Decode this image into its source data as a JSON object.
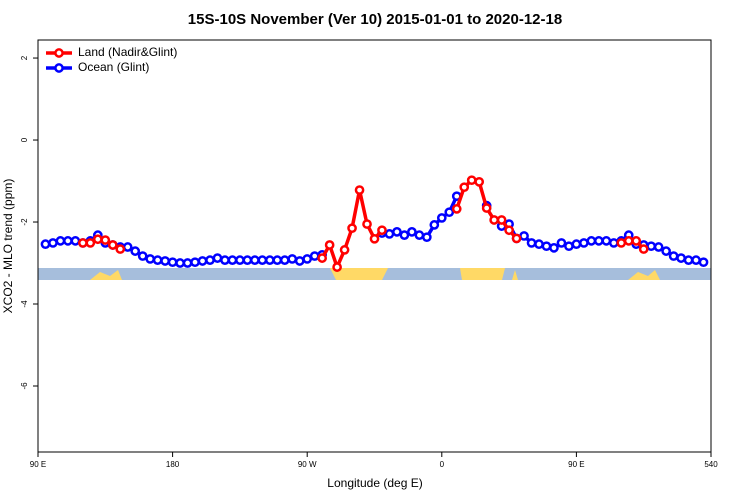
{
  "chart_data": {
    "type": "line",
    "title": "15S-10S November (Ver 10)   2015-01-01 to 2020-12-18",
    "x_label": "Longitude (deg E)",
    "y_label": "XCO2 - MLO trend (ppm)",
    "x": [
      95,
      100,
      105,
      110,
      115,
      120,
      125,
      130,
      135,
      140,
      145,
      150,
      155,
      160,
      165,
      170,
      175,
      180,
      185,
      190,
      195,
      200,
      205,
      210,
      215,
      220,
      225,
      230,
      235,
      240,
      245,
      250,
      255,
      260,
      265,
      270,
      275,
      280,
      285,
      290,
      295,
      300,
      305,
      310,
      315,
      320,
      325,
      330,
      335,
      340,
      345,
      350,
      355,
      360,
      365,
      370,
      375,
      380,
      385,
      390,
      395,
      400,
      405,
      410,
      415,
      420,
      425,
      430,
      435,
      440,
      445,
      450,
      455,
      460,
      465,
      470,
      475,
      480,
      485,
      490,
      495,
      500,
      505,
      510,
      515,
      520,
      525,
      530,
      535
    ],
    "series": [
      {
        "name": "Land (Nadir&Glint)",
        "color": "#ff0000",
        "values": [
          null,
          null,
          null,
          null,
          null,
          -2.51,
          -2.51,
          -2.42,
          -2.44,
          -2.56,
          -2.66,
          null,
          null,
          null,
          null,
          null,
          null,
          null,
          null,
          null,
          null,
          null,
          null,
          null,
          null,
          null,
          null,
          null,
          null,
          null,
          null,
          null,
          null,
          null,
          null,
          null,
          null,
          -2.88,
          -2.56,
          -3.1,
          -2.68,
          -2.15,
          -1.22,
          -2.05,
          -2.41,
          -2.2,
          null,
          null,
          null,
          null,
          null,
          null,
          null,
          null,
          null,
          -1.68,
          -1.15,
          -0.98,
          -1.02,
          -1.66,
          -1.95,
          -1.95,
          -2.2,
          -2.4,
          null,
          null,
          null,
          null,
          null,
          null,
          null,
          null,
          null,
          null,
          null,
          null,
          null,
          -2.51,
          -2.46,
          -2.46,
          -2.66,
          null,
          null,
          null,
          null,
          null,
          null,
          null,
          null
        ]
      },
      {
        "name": "Ocean (Glint)",
        "color": "#0000ff",
        "values": [
          -2.54,
          -2.51,
          -2.46,
          -2.46,
          -2.46,
          -2.51,
          -2.46,
          -2.32,
          -2.51,
          -2.56,
          -2.61,
          -2.61,
          -2.71,
          -2.83,
          -2.9,
          -2.93,
          -2.95,
          -2.98,
          -3.0,
          -3.0,
          -2.98,
          -2.95,
          -2.93,
          -2.88,
          -2.93,
          -2.93,
          -2.93,
          -2.93,
          -2.93,
          -2.93,
          -2.93,
          -2.93,
          -2.93,
          -2.9,
          -2.95,
          -2.9,
          -2.83,
          -2.8,
          null,
          null,
          null,
          null,
          null,
          null,
          null,
          -2.27,
          -2.29,
          -2.24,
          -2.32,
          -2.24,
          -2.32,
          -2.37,
          -2.07,
          -1.9,
          -1.76,
          -1.37,
          null,
          null,
          null,
          -1.6,
          null,
          -2.1,
          -2.05,
          -2.4,
          -2.34,
          -2.51,
          -2.54,
          -2.59,
          -2.63,
          -2.51,
          -2.59,
          -2.54,
          -2.51,
          -2.46,
          -2.46,
          -2.46,
          -2.51,
          -2.46,
          -2.32,
          -2.54,
          -2.56,
          -2.59,
          -2.61,
          -2.71,
          -2.83,
          -2.88,
          -2.93,
          -2.93,
          -2.98
        ]
      }
    ],
    "xlim": [
      90,
      540
    ],
    "xticks": [
      {
        "value": 90,
        "label": "90 E"
      },
      180,
      {
        "value": 270,
        "label": "90 W"
      },
      {
        "value": 360,
        "label": "0"
      },
      {
        "value": 450,
        "label": "90 E"
      },
      540
    ],
    "ylim": [
      -7.61,
      2.44
    ],
    "yticks": [
      2,
      0,
      -2,
      -4,
      -6
    ],
    "legend": "top-left"
  }
}
